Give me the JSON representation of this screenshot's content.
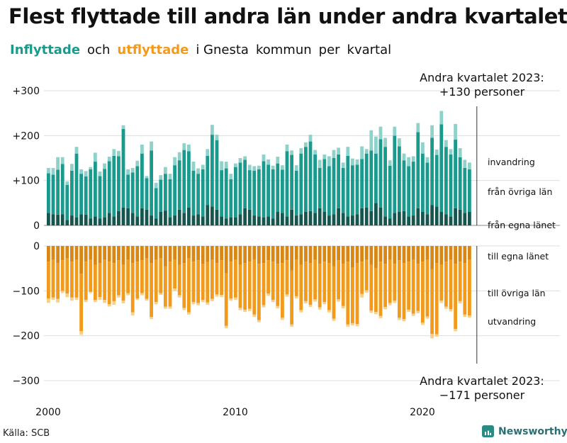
{
  "title": "Flest flyttade till andra län under andra kvartalet",
  "subtitle": {
    "part1": "Inflyttade",
    "part2": "och",
    "part3": "utflyttade",
    "part4": "i Gnesta",
    "part5": "kommun",
    "part6": "per",
    "part7": "kvartal"
  },
  "source": "Källa: SCB",
  "brand": "Newsworthy",
  "colors": {
    "in_dark": "#17564f",
    "in_mid": "#1a9a8c",
    "in_light": "#8fd2ca",
    "out_dark": "#d98714",
    "out_mid": "#f29a1b",
    "out_light": "#f7d08b",
    "grid": "#dddddd"
  },
  "chart_data": {
    "type": "bar",
    "stacked": true,
    "x_start": "2000Q1",
    "x_ticks": [
      "2000",
      "2010",
      "2020"
    ],
    "y_ticks_top": [
      "+300",
      "+200",
      "+100",
      "0"
    ],
    "y_ticks_bottom": [
      "0",
      "−100",
      "−200",
      "−300"
    ],
    "ylim_top": [
      0,
      300
    ],
    "ylim_bottom": [
      -300,
      0
    ],
    "inflow_series": [
      {
        "name": "från egna länet",
        "values": [
          28,
          25,
          24,
          25,
          12,
          22,
          18,
          25,
          24,
          15,
          20,
          15,
          18,
          28,
          20,
          32,
          40,
          38,
          28,
          20,
          38,
          35,
          22,
          15,
          30,
          33,
          18,
          22,
          35,
          28,
          40,
          22,
          25,
          20,
          45,
          42,
          35,
          20,
          15,
          18,
          18,
          25,
          38,
          35,
          22,
          20,
          18,
          20,
          15,
          30,
          28,
          20,
          35,
          22,
          25,
          30,
          32,
          28,
          38,
          30,
          22,
          25,
          38,
          28,
          20,
          22,
          25,
          38,
          40,
          32,
          50,
          40,
          20,
          15,
          28,
          30,
          32,
          20,
          22,
          38,
          30,
          25,
          45,
          42,
          30,
          25,
          20,
          38,
          35,
          28,
          30
        ]
      },
      {
        "name": "från övriga län",
        "values": [
          88,
          88,
          100,
          112,
          78,
          100,
          142,
          90,
          85,
          110,
          122,
          95,
          108,
          115,
          135,
          122,
          175,
          75,
          90,
          112,
          122,
          70,
          145,
          68,
          72,
          82,
          85,
          112,
          110,
          140,
          125,
          100,
          90,
          105,
          110,
          160,
          155,
          103,
          112,
          85,
          112,
          115,
          108,
          88,
          100,
          105,
          125,
          115,
          110,
          108,
          96,
          145,
          122,
          100,
          135,
          145,
          155,
          130,
          90,
          118,
          110,
          125,
          120,
          100,
          135,
          112,
          110,
          110,
          120,
          135,
          110,
          152,
          155,
          118,
          172,
          146,
          113,
          112,
          120,
          170,
          130,
          115,
          150,
          115,
          195,
          150,
          138,
          153,
          117,
          100,
          95
        ]
      },
      {
        "name": "invandring",
        "values": [
          12,
          15,
          28,
          15,
          8,
          15,
          15,
          10,
          12,
          5,
          20,
          10,
          12,
          10,
          15,
          12,
          8,
          12,
          10,
          12,
          20,
          5,
          20,
          12,
          10,
          15,
          12,
          18,
          18,
          15,
          15,
          20,
          12,
          10,
          15,
          22,
          12,
          20,
          15,
          12,
          8,
          10,
          8,
          12,
          10,
          8,
          15,
          12,
          8,
          15,
          10,
          15,
          10,
          12,
          12,
          10,
          15,
          10,
          18,
          10,
          22,
          18,
          15,
          12,
          20,
          15,
          12,
          28,
          10,
          45,
          38,
          28,
          20,
          12,
          20,
          18,
          15,
          20,
          12,
          20,
          25,
          12,
          28,
          12,
          30,
          15,
          12,
          35,
          20,
          18,
          15
        ]
      },
      {
        "name": "total",
        "values": [
          128,
          128,
          152,
          152,
          98,
          137,
          175,
          125,
          121,
          130,
          162,
          120,
          138,
          153,
          170,
          166,
          223,
          125,
          128,
          144,
          180,
          110,
          187,
          95,
          112,
          130,
          115,
          152,
          163,
          183,
          180,
          142,
          127,
          135,
          170,
          224,
          202,
          143,
          142,
          115,
          138,
          150,
          154,
          135,
          132,
          133,
          158,
          147,
          133,
          153,
          134,
          180,
          167,
          134,
          172,
          185,
          202,
          168,
          146,
          158,
          154,
          168,
          173,
          140,
          175,
          149,
          147,
          176,
          170,
          212,
          198,
          220,
          195,
          145,
          220,
          194,
          160,
          152,
          154,
          228,
          185,
          152,
          223,
          169,
          255,
          190,
          170,
          226,
          172,
          146,
          140
        ]
      }
    ],
    "outflow_series": [
      {
        "name": "till egna länet",
        "values": [
          -35,
          -30,
          -38,
          -32,
          -28,
          -35,
          -30,
          -62,
          -35,
          -30,
          -42,
          -38,
          -30,
          -35,
          -38,
          -32,
          -42,
          -30,
          -38,
          -35,
          -32,
          -28,
          -38,
          -30,
          -28,
          -45,
          -35,
          -30,
          -42,
          -38,
          -28,
          -35,
          -32,
          -40,
          -36,
          -30,
          -38,
          -32,
          -60,
          -35,
          -30,
          -42,
          -38,
          -35,
          -30,
          -40,
          -38,
          -32,
          -35,
          -40,
          -38,
          -32,
          -55,
          -30,
          -42,
          -35,
          -38,
          -30,
          -40,
          -35,
          -38,
          -45,
          -32,
          -40,
          -35,
          -48,
          -38,
          -35,
          -30,
          -42,
          -50,
          -35,
          -40,
          -30,
          -40,
          -32,
          -38,
          -35,
          -30,
          -40,
          -35,
          -30,
          -52,
          -38,
          -42,
          -35,
          -30,
          -40,
          -35,
          -38,
          -30
        ]
      },
      {
        "name": "till övriga län",
        "values": [
          -82,
          -85,
          -80,
          -68,
          -78,
          -80,
          -85,
          -128,
          -85,
          -72,
          -78,
          -76,
          -90,
          -95,
          -85,
          -78,
          -80,
          -75,
          -110,
          -82,
          -73,
          -90,
          -120,
          -95,
          -77,
          -90,
          -100,
          -65,
          -68,
          -100,
          -120,
          -90,
          -95,
          -80,
          -90,
          -88,
          -70,
          -77,
          -118,
          -82,
          -85,
          -96,
          -104,
          -105,
          -123,
          -125,
          -94,
          -74,
          -85,
          -94,
          -122,
          -76,
          -120,
          -82,
          -101,
          -88,
          -93,
          -89,
          -97,
          -90,
          -105,
          -117,
          -87,
          -94,
          -140,
          -124,
          -136,
          -72,
          -69,
          -102,
          -97,
          -121,
          -96,
          -97,
          -82,
          -128,
          -125,
          -107,
          -121,
          -105,
          -136,
          -127,
          -144,
          -159,
          -80,
          -100,
          -111,
          -145,
          -88,
          -115,
          -125
        ]
      },
      {
        "name": "utvandring",
        "values": [
          -10,
          -5,
          -8,
          -5,
          -8,
          -7,
          -5,
          -8,
          -5,
          -3,
          -5,
          -6,
          -7,
          -5,
          -8,
          -5,
          -6,
          -5,
          -7,
          -3,
          -5,
          -4,
          -5,
          -5,
          -4,
          -5,
          -5,
          -5,
          -5,
          -5,
          -5,
          -5,
          -5,
          -5,
          -5,
          -5,
          -5,
          -5,
          -5,
          -5,
          -5,
          -5,
          -5,
          -5,
          -5,
          -5,
          -5,
          -5,
          -5,
          -5,
          -5,
          -5,
          -5,
          -5,
          -5,
          -5,
          -5,
          -5,
          -5,
          -5,
          -5,
          -5,
          -5,
          -5,
          -5,
          -5,
          -5,
          -8,
          -5,
          -5,
          -5,
          -5,
          -5,
          -5,
          -5,
          -5,
          -5,
          -5,
          -5,
          -5,
          -5,
          -5,
          -10,
          -5,
          -5,
          -5,
          -5,
          -5,
          -5,
          -5,
          -5
        ]
      }
    ],
    "legend_labels": [
      "invandring",
      "från övriga län",
      "från egna länet",
      "till egna länet",
      "till övriga län",
      "utvandring"
    ],
    "annotation_top": [
      "Andra kvartalet 2023:",
      "+130 personer"
    ],
    "annotation_bottom": [
      "Andra kvartalet 2023:",
      "−171 personer"
    ]
  }
}
